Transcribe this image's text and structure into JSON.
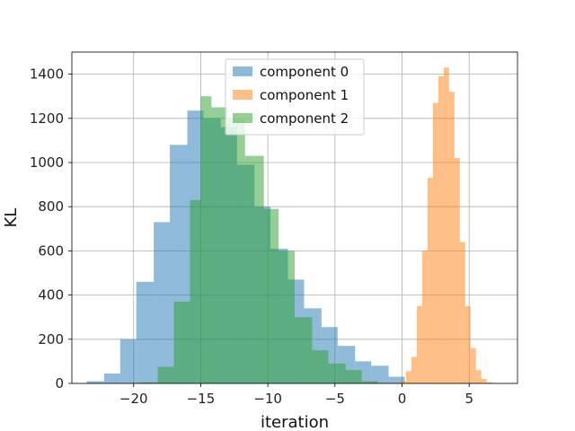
{
  "chart_data": {
    "type": "histogram",
    "title": "",
    "xlabel": "iteration",
    "ylabel": "KL",
    "xlim": [
      -24.6,
      8.6
    ],
    "ylim": [
      0,
      1500
    ],
    "xticks": [
      -20,
      -15,
      -10,
      -5,
      0,
      5
    ],
    "yticks": [
      0,
      200,
      400,
      600,
      800,
      1000,
      1200,
      1400
    ],
    "grid": true,
    "legend": {
      "position": "top-center",
      "entries": [
        "component 0",
        "component 1",
        "component 2"
      ]
    },
    "series": [
      {
        "name": "component 0",
        "color": "#1f77b4",
        "alpha": 0.5,
        "bin_edges": [
          -23.5,
          -22.2,
          -21.0,
          -19.8,
          -18.5,
          -17.3,
          -16.0,
          -14.8,
          -13.5,
          -12.3,
          -11.0,
          -9.8,
          -8.5,
          -7.3,
          -6.0,
          -4.8,
          -3.5,
          -2.3,
          -1.0,
          0.2
        ],
        "counts": [
          10,
          45,
          200,
          460,
          730,
          1080,
          1235,
          1200,
          1160,
          990,
          800,
          610,
          470,
          340,
          255,
          170,
          100,
          80,
          30
        ]
      },
      {
        "name": "component 1",
        "color": "#ff7f0e",
        "alpha": 0.5,
        "bin_edges": [
          -0.1,
          0.3,
          0.7,
          1.1,
          1.5,
          1.9,
          2.3,
          2.7,
          3.1,
          3.5,
          3.9,
          4.3,
          4.7,
          5.1,
          5.5,
          5.9,
          6.3,
          6.7
        ],
        "counts": [
          10,
          55,
          120,
          350,
          600,
          930,
          1270,
          1390,
          1430,
          1320,
          1020,
          640,
          350,
          160,
          60,
          20,
          5
        ]
      },
      {
        "name": "component 2",
        "color": "#2ca02c",
        "alpha": 0.5,
        "bin_edges": [
          -19.5,
          -18.2,
          -17.0,
          -15.8,
          -15.0,
          -14.2,
          -13.0,
          -11.7,
          -10.3,
          -9.2,
          -8.0,
          -6.7,
          -5.5,
          -4.2,
          -3.0,
          -1.8
        ],
        "counts": [
          5,
          75,
          370,
          830,
          1300,
          1250,
          1200,
          1030,
          790,
          600,
          300,
          150,
          90,
          60,
          10
        ]
      }
    ]
  }
}
